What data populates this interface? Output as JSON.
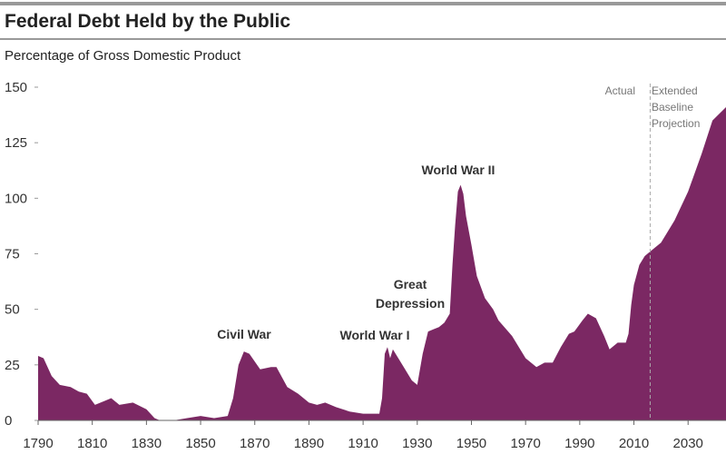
{
  "chart_data": {
    "type": "area",
    "title": "Federal Debt Held by the Public",
    "subtitle": "Percentage of Gross Domestic Product",
    "color": "#7b2863",
    "x": [
      1790,
      1792,
      1795,
      1798,
      1802,
      1805,
      1808,
      1811,
      1815,
      1817,
      1820,
      1825,
      1830,
      1833,
      1835,
      1840,
      1845,
      1850,
      1855,
      1860,
      1862,
      1864,
      1866,
      1868,
      1872,
      1876,
      1878,
      1882,
      1886,
      1890,
      1893,
      1896,
      1900,
      1905,
      1910,
      1916,
      1917,
      1918,
      1919,
      1920,
      1921,
      1922,
      1925,
      1928,
      1930,
      1932,
      1934,
      1936,
      1938,
      1940,
      1942,
      1943,
      1944,
      1945,
      1946,
      1947,
      1948,
      1950,
      1952,
      1955,
      1958,
      1960,
      1965,
      1970,
      1974,
      1977,
      1980,
      1983,
      1986,
      1988,
      1991,
      1993,
      1996,
      1999,
      2001,
      2004,
      2007,
      2008,
      2009,
      2010,
      2012,
      2014,
      2016,
      2020,
      2025,
      2030,
      2035,
      2039,
      2044
    ],
    "values": [
      29,
      28,
      20,
      16,
      15,
      13,
      12,
      7,
      9,
      10,
      7,
      8,
      5,
      1,
      0,
      0,
      1,
      2,
      1,
      2,
      10,
      25,
      31,
      30,
      23,
      24,
      24,
      15,
      12,
      8,
      7,
      8,
      6,
      4,
      3,
      3,
      10,
      30,
      33,
      28,
      32,
      30,
      24,
      18,
      16,
      30,
      40,
      41,
      42,
      44,
      48,
      70,
      88,
      103,
      106,
      102,
      92,
      79,
      65,
      55,
      50,
      45,
      38,
      28,
      24,
      26,
      26,
      33,
      39,
      40,
      45,
      48,
      46,
      38,
      32,
      35,
      35,
      39,
      52,
      61,
      70,
      74,
      76,
      80,
      90,
      103,
      120,
      135,
      141
    ],
    "xlim": [
      1790,
      2044
    ],
    "ylim": [
      0,
      150
    ],
    "xticks": [
      1790,
      1810,
      1830,
      1850,
      1870,
      1890,
      1910,
      1930,
      1950,
      1970,
      1990,
      2010,
      2030
    ],
    "yticks": [
      0,
      25,
      50,
      75,
      100,
      125,
      150
    ],
    "projection_start": 2016,
    "annotations": {
      "civil_war": "Civil War",
      "wwi": "World War I",
      "great_depression": [
        "Great",
        "Depression"
      ],
      "wwii": "World War II",
      "actual": "Actual",
      "projection": [
        "Extended",
        "Baseline",
        "Projection"
      ]
    }
  }
}
